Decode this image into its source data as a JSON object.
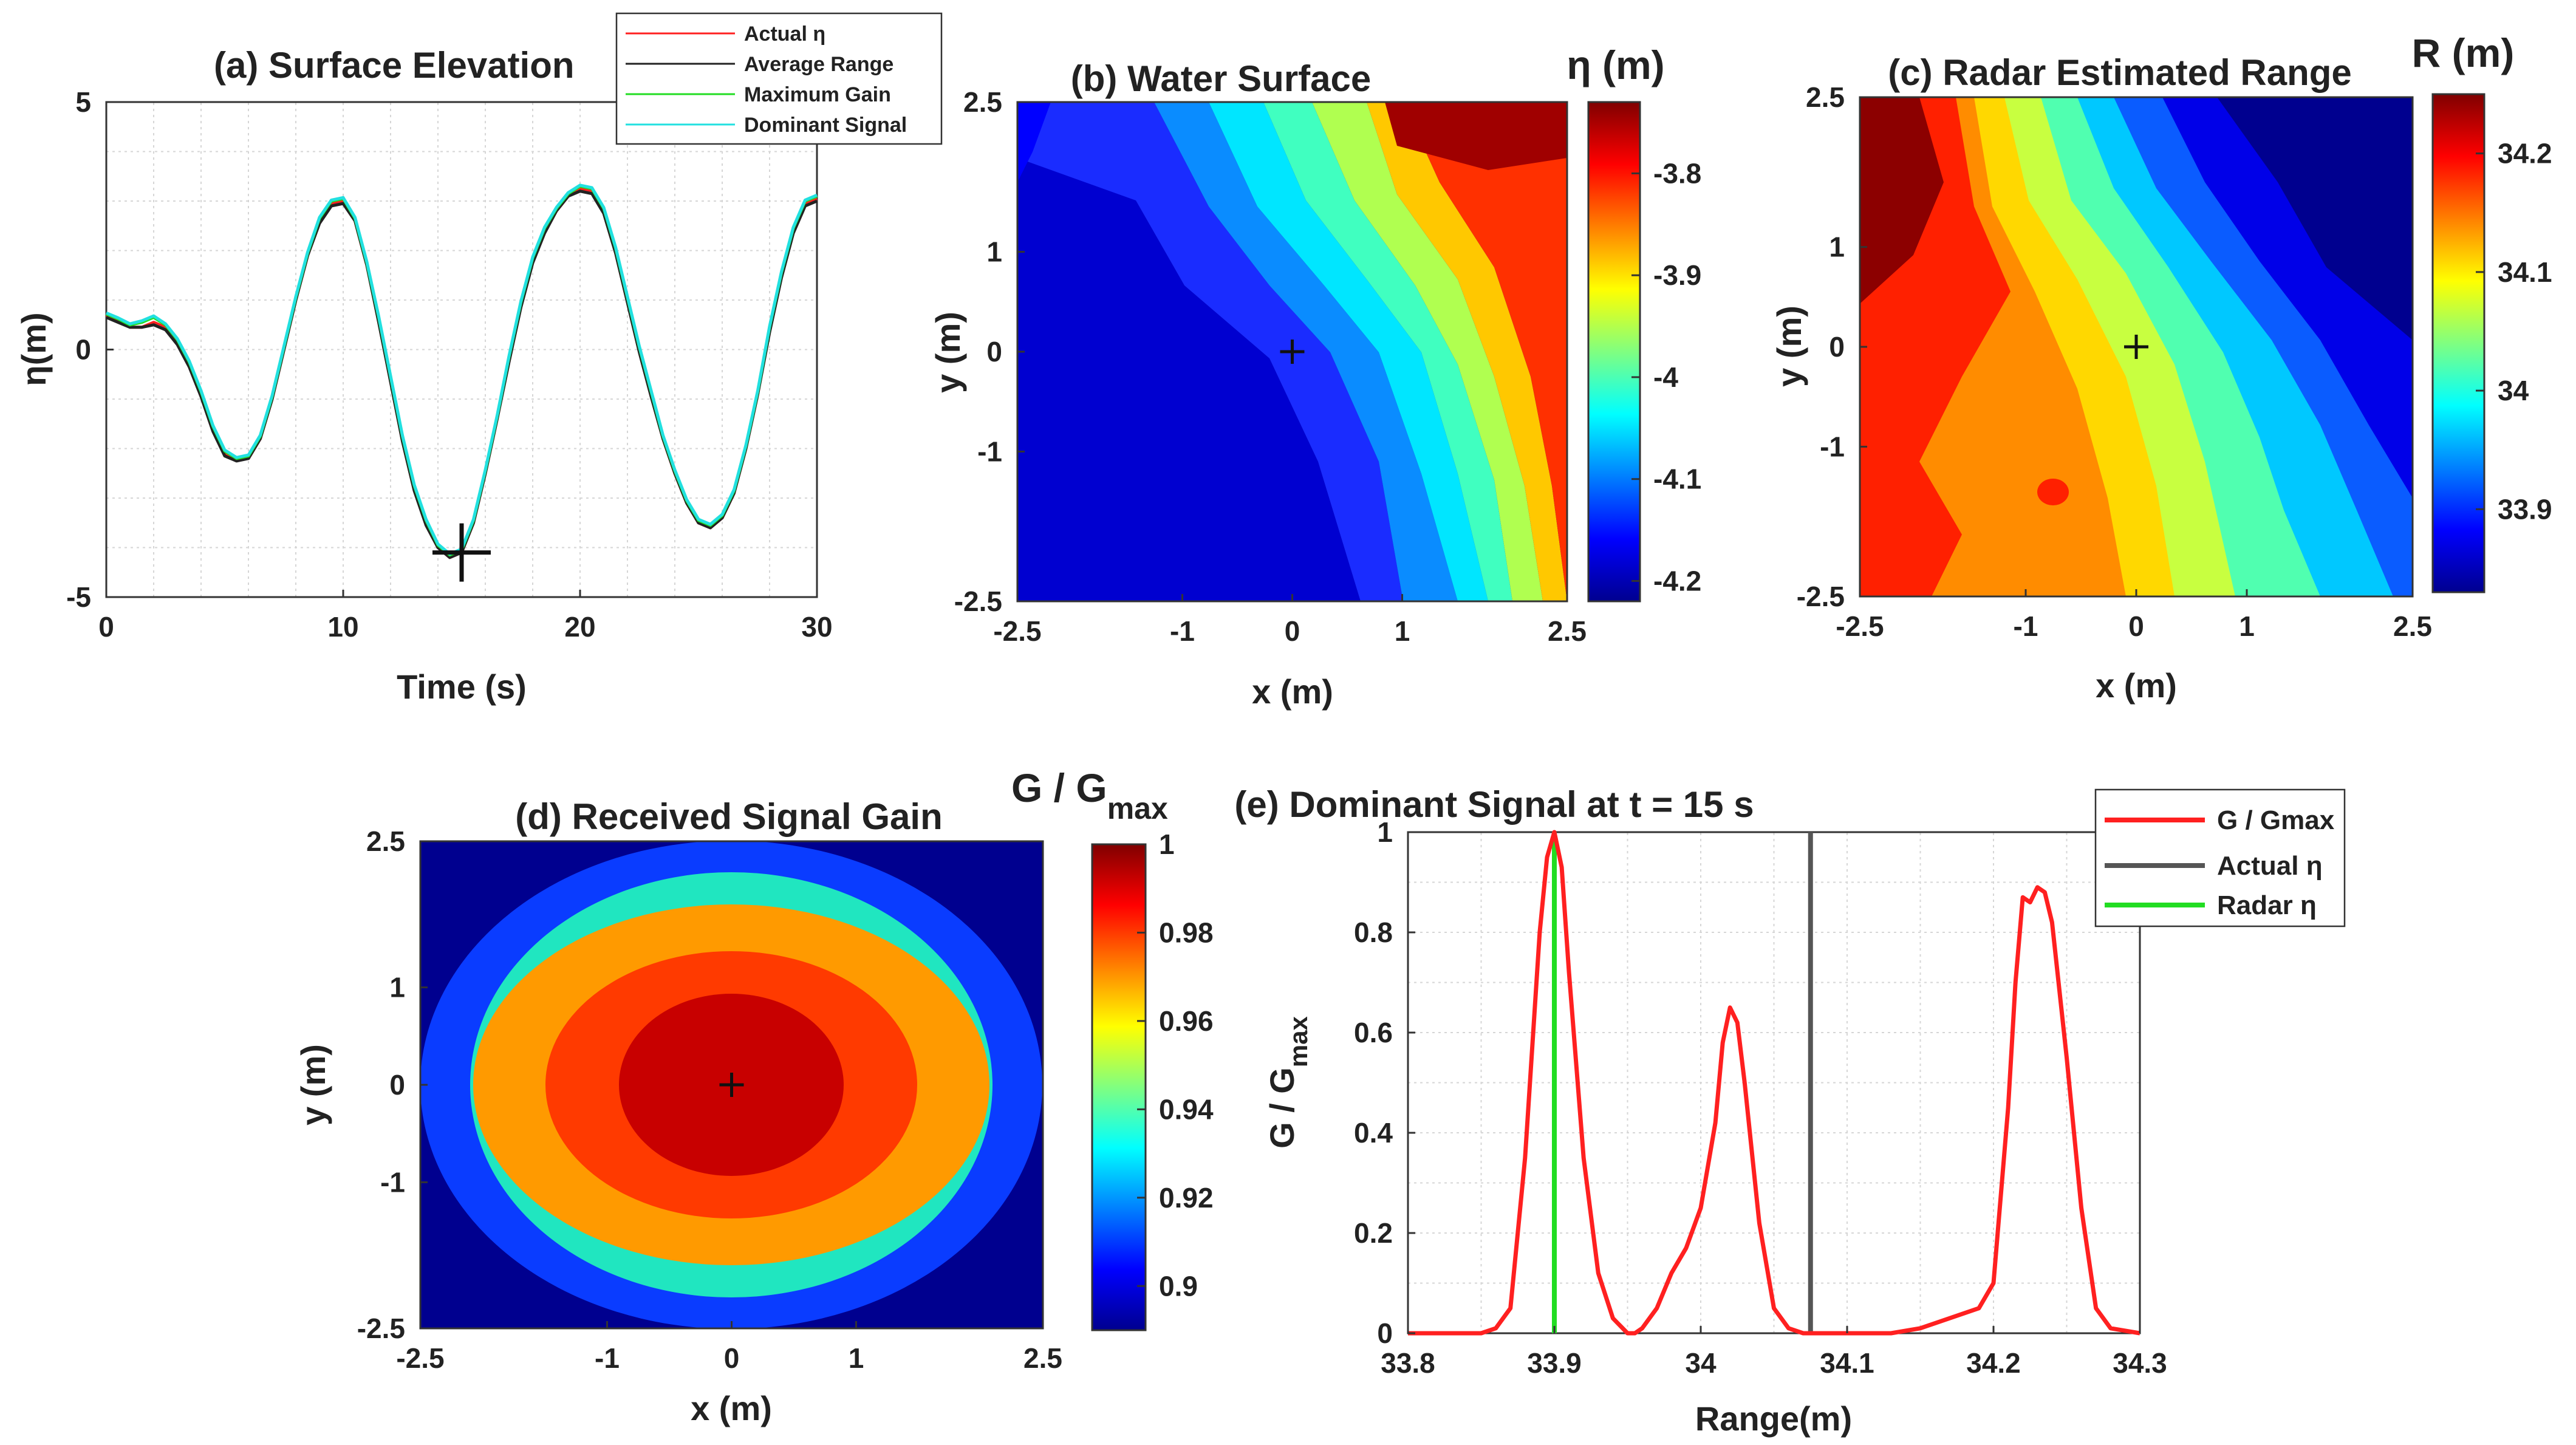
{
  "colors": {
    "red": "#ff2020",
    "black": "#222222",
    "green": "#22dd22",
    "cyan": "#22e0e0",
    "grid": "#d6d6d6"
  },
  "chart_data": [
    {
      "id": "a",
      "type": "line",
      "title": "(a) Surface Elevation",
      "xlabel": "Time (s)",
      "ylabel": "η(m)",
      "xlim": [
        0,
        30
      ],
      "ylim": [
        -5,
        5
      ],
      "xticks": [
        0,
        10,
        20,
        30
      ],
      "yticks": [
        -5,
        0,
        5
      ],
      "grid": true,
      "legend_position": "top-right",
      "marker": {
        "x": 15,
        "y": -4.1
      },
      "x": [
        0,
        0.5,
        1,
        1.5,
        2,
        2.5,
        3,
        3.5,
        4,
        4.5,
        5,
        5.5,
        6,
        6.5,
        7,
        7.5,
        8,
        8.5,
        9,
        9.5,
        10,
        10.5,
        11,
        11.5,
        12,
        12.5,
        13,
        13.5,
        14,
        14.5,
        15,
        15.5,
        16,
        16.5,
        17,
        17.5,
        18,
        18.5,
        19,
        19.5,
        20,
        20.5,
        21,
        21.5,
        22,
        22.5,
        23,
        23.5,
        24,
        24.5,
        25,
        25.5,
        26,
        26.5,
        27,
        27.5,
        28,
        28.5,
        29,
        29.5,
        30
      ],
      "series": [
        {
          "name": "Actual η",
          "color_key": "red",
          "values": [
            0.7,
            0.6,
            0.45,
            0.45,
            0.55,
            0.45,
            0.15,
            -0.3,
            -0.9,
            -1.6,
            -2.1,
            -2.2,
            -2.2,
            -1.8,
            -1.0,
            0.0,
            1.0,
            1.9,
            2.6,
            2.95,
            3.0,
            2.6,
            1.7,
            0.6,
            -0.6,
            -1.8,
            -2.8,
            -3.5,
            -4.0,
            -4.2,
            -4.1,
            -3.5,
            -2.5,
            -1.4,
            -0.2,
            0.9,
            1.8,
            2.4,
            2.8,
            3.1,
            3.25,
            3.2,
            2.8,
            2.0,
            1.0,
            0.0,
            -0.9,
            -1.8,
            -2.5,
            -3.1,
            -3.5,
            -3.6,
            -3.4,
            -2.9,
            -2.0,
            -0.9,
            0.4,
            1.5,
            2.4,
            2.95,
            3.05
          ]
        },
        {
          "name": "Average Range",
          "color_key": "black",
          "values": [
            0.65,
            0.55,
            0.45,
            0.45,
            0.5,
            0.4,
            0.1,
            -0.35,
            -0.95,
            -1.65,
            -2.15,
            -2.25,
            -2.2,
            -1.8,
            -1.0,
            0.0,
            1.0,
            1.9,
            2.55,
            2.9,
            2.95,
            2.6,
            1.7,
            0.55,
            -0.65,
            -1.85,
            -2.85,
            -3.55,
            -4.0,
            -4.2,
            -4.1,
            -3.5,
            -2.5,
            -1.4,
            -0.25,
            0.85,
            1.75,
            2.35,
            2.8,
            3.1,
            3.2,
            3.15,
            2.75,
            1.95,
            0.95,
            -0.05,
            -0.95,
            -1.8,
            -2.5,
            -3.1,
            -3.5,
            -3.6,
            -3.4,
            -2.9,
            -2.0,
            -0.9,
            0.35,
            1.45,
            2.35,
            2.9,
            3.0
          ]
        },
        {
          "name": "Maximum Gain",
          "color_key": "green",
          "values": [
            0.72,
            0.62,
            0.5,
            0.55,
            0.65,
            0.5,
            0.2,
            -0.25,
            -0.85,
            -1.55,
            -2.05,
            -2.2,
            -2.15,
            -1.75,
            -0.95,
            0.05,
            1.05,
            1.95,
            2.65,
            3.0,
            3.05,
            2.65,
            1.75,
            0.65,
            -0.55,
            -1.75,
            -2.75,
            -3.45,
            -3.95,
            -4.15,
            -4.05,
            -3.45,
            -2.45,
            -1.35,
            -0.15,
            0.95,
            1.85,
            2.45,
            2.85,
            3.15,
            3.3,
            3.25,
            2.85,
            2.05,
            1.05,
            0.05,
            -0.85,
            -1.75,
            -2.45,
            -3.05,
            -3.45,
            -3.55,
            -3.35,
            -2.85,
            -1.95,
            -0.85,
            0.45,
            1.55,
            2.45,
            3.0,
            3.1
          ]
        },
        {
          "name": "Dominant Signal",
          "color_key": "cyan",
          "values": [
            0.74,
            0.64,
            0.52,
            0.58,
            0.68,
            0.52,
            0.22,
            -0.23,
            -0.83,
            -1.53,
            -2.03,
            -2.18,
            -2.13,
            -1.73,
            -0.93,
            0.07,
            1.07,
            1.97,
            2.67,
            3.02,
            3.07,
            2.67,
            1.77,
            0.67,
            -0.53,
            -1.73,
            -2.73,
            -3.43,
            -3.93,
            -4.13,
            -4.03,
            -3.43,
            -2.43,
            -1.33,
            -0.13,
            0.97,
            1.87,
            2.47,
            2.87,
            3.17,
            3.32,
            3.27,
            2.87,
            2.07,
            1.07,
            0.07,
            -0.83,
            -1.73,
            -2.43,
            -3.03,
            -3.43,
            -3.53,
            -3.33,
            -2.83,
            -1.93,
            -0.83,
            0.47,
            1.57,
            2.47,
            3.02,
            3.12
          ]
        }
      ],
      "legend": [
        "Actual η",
        "Average Range",
        "Maximum Gain",
        "Dominant Signal"
      ]
    },
    {
      "id": "b",
      "type": "heatmap",
      "title": "(b) Water Surface",
      "xlabel": "x (m)",
      "ylabel": "y (m)",
      "xlim": [
        -2.5,
        2.5
      ],
      "ylim": [
        -2.5,
        2.5
      ],
      "xticks": [
        -2.5,
        -1,
        0,
        1,
        2.5
      ],
      "yticks": [
        -2.5,
        -1,
        0,
        1,
        2.5
      ],
      "colorbar_title": "η (m)",
      "colorbar_range": [
        -4.22,
        -3.73
      ],
      "colorbar_ticks": [
        -3.8,
        -3.9,
        -4,
        -4.1,
        -4.2
      ],
      "center_marker": {
        "x": 0,
        "y": 0
      }
    },
    {
      "id": "c",
      "type": "heatmap",
      "title": "(c) Radar Estimated Range",
      "xlabel": "x (m)",
      "ylabel": "y (m)",
      "xlim": [
        -2.5,
        2.5
      ],
      "ylim": [
        -2.5,
        2.5
      ],
      "xticks": [
        -2.5,
        -1,
        0,
        1,
        2.5
      ],
      "yticks": [
        -2.5,
        -1,
        0,
        1,
        2.5
      ],
      "colorbar_title": "R (m)",
      "colorbar_range": [
        33.83,
        34.25
      ],
      "colorbar_ticks": [
        34.2,
        34.1,
        34,
        33.9
      ],
      "center_marker": {
        "x": 0,
        "y": 0
      }
    },
    {
      "id": "d",
      "type": "heatmap",
      "title": "(d) Received Signal Gain",
      "xlabel": "x (m)",
      "ylabel": "y (m)",
      "xlim": [
        -2.5,
        2.5
      ],
      "ylim": [
        -2.5,
        2.5
      ],
      "xticks": [
        -2.5,
        -1,
        0,
        1,
        2.5
      ],
      "yticks": [
        -2.5,
        -1,
        0,
        1,
        2.5
      ],
      "colorbar_title": "G / G",
      "colorbar_title_sub": "max",
      "colorbar_range": [
        0.89,
        1.0
      ],
      "colorbar_ticks": [
        1,
        0.98,
        0.96,
        0.94,
        0.92,
        0.9
      ],
      "center_marker": {
        "x": 0,
        "y": 0
      },
      "contour_levels": [
        {
          "rx": 2.5,
          "ry": 2.5,
          "value": 0.925
        },
        {
          "rx": 2.1,
          "ry": 2.2,
          "value": 0.94
        },
        {
          "rx": 2.07,
          "ry": 1.85,
          "value": 0.965
        },
        {
          "rx": 1.5,
          "ry": 1.37,
          "value": 0.98
        },
        {
          "rx": 0.9,
          "ry": 0.93,
          "value": 0.995
        }
      ]
    },
    {
      "id": "e",
      "type": "line",
      "title": "(e) Dominant Signal at t = 15 s",
      "xlabel": "Range(m)",
      "ylabel": "G / G",
      "ylabel_sub": "max",
      "xlim": [
        33.8,
        34.3
      ],
      "ylim": [
        0,
        1
      ],
      "xticks": [
        33.8,
        33.9,
        34,
        34.1,
        34.2,
        34.3
      ],
      "yticks": [
        0,
        0.2,
        0.4,
        0.6,
        0.8,
        1
      ],
      "grid": true,
      "legend_position": "top-right",
      "legend": [
        "G / Gmax",
        "Actual η",
        "Radar η"
      ],
      "actual_eta": 34.075,
      "radar_eta": 33.9,
      "x": [
        33.8,
        33.83,
        33.85,
        33.86,
        33.87,
        33.88,
        33.89,
        33.895,
        33.9,
        33.905,
        33.91,
        33.92,
        33.93,
        33.94,
        33.95,
        33.955,
        33.96,
        33.97,
        33.98,
        33.99,
        34.0,
        34.01,
        34.015,
        34.02,
        34.025,
        34.03,
        34.04,
        34.05,
        34.06,
        34.07,
        34.08,
        34.1,
        34.13,
        34.15,
        34.17,
        34.19,
        34.2,
        34.21,
        34.215,
        34.22,
        34.225,
        34.23,
        34.235,
        34.24,
        34.25,
        34.26,
        34.27,
        34.28,
        34.3
      ],
      "series": [
        {
          "name": "G / Gmax",
          "color_key": "red",
          "values": [
            0,
            0,
            0,
            0.01,
            0.05,
            0.35,
            0.8,
            0.95,
            1.0,
            0.93,
            0.72,
            0.35,
            0.12,
            0.03,
            0,
            0,
            0.01,
            0.05,
            0.12,
            0.17,
            0.25,
            0.42,
            0.58,
            0.65,
            0.62,
            0.5,
            0.22,
            0.05,
            0.01,
            0,
            0,
            0,
            0,
            0.01,
            0.03,
            0.05,
            0.1,
            0.45,
            0.7,
            0.87,
            0.86,
            0.89,
            0.88,
            0.82,
            0.55,
            0.25,
            0.05,
            0.01,
            0
          ]
        }
      ]
    }
  ]
}
